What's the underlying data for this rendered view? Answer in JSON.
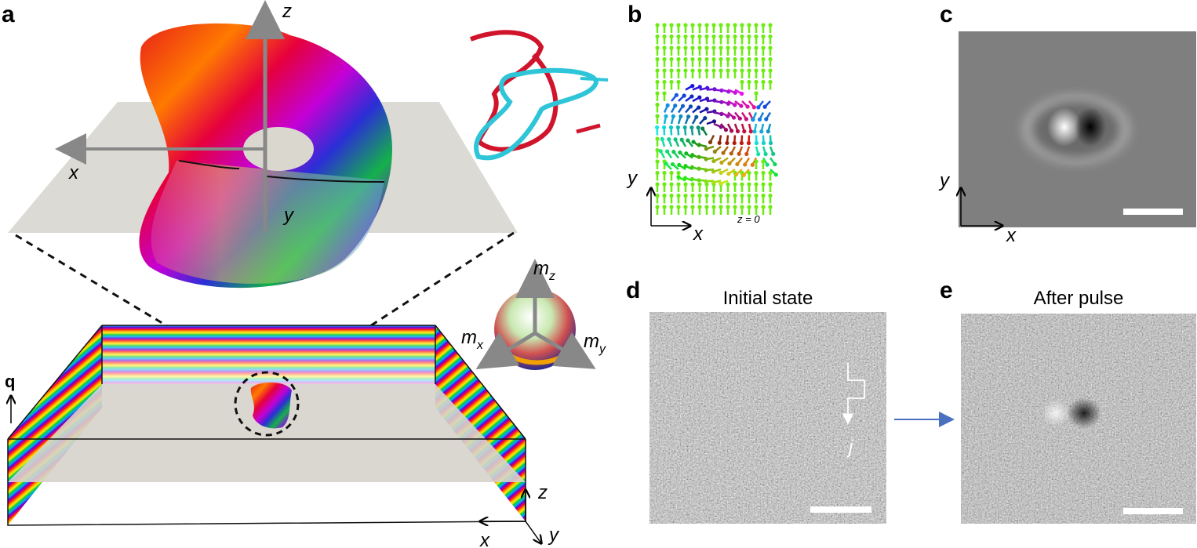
{
  "panel_a": {
    "label": "a",
    "torus_axes": {
      "z": "z",
      "x": "x",
      "y": "y"
    },
    "wavevector": "q",
    "box_axes": {
      "z": "z",
      "x": "x",
      "y": "y"
    },
    "color_sphere": [
      {
        "base": "m",
        "sub": "z"
      },
      {
        "base": "m",
        "sub": "x"
      },
      {
        "base": "m",
        "sub": "y"
      }
    ]
  },
  "panel_b": {
    "label": "b",
    "axes": {
      "y": "y",
      "x": "x"
    },
    "slice": "z = 0"
  },
  "panel_c": {
    "label": "c",
    "axes": {
      "y": "y",
      "x": "x"
    }
  },
  "panel_d": {
    "label": "d",
    "title": "Initial state",
    "current": "j"
  },
  "panel_e": {
    "label": "e",
    "title": "After pulse"
  }
}
